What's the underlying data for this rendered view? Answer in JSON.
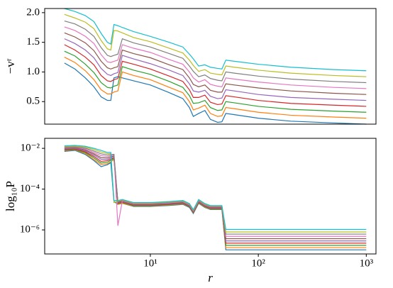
{
  "chart_data": [
    {
      "type": "line",
      "ylabel": "−vʳ",
      "x": [
        1.6,
        2,
        2.5,
        3,
        3.5,
        4,
        4.3,
        4.6,
        5,
        5.5,
        7,
        10,
        15,
        20,
        23,
        25,
        28,
        32,
        36,
        42,
        46,
        50,
        60,
        100,
        200,
        500,
        1000
      ],
      "xlim": [
        1.05,
        1230
      ],
      "xlog": true,
      "ylim": [
        0.12,
        2.07
      ],
      "yticks": [
        0.5,
        {
          "value": 1,
          "label": "1.0"
        },
        1.5,
        {
          "value": 2,
          "label": "2.0"
        }
      ],
      "series": [
        {
          "color": "#1f77b4",
          "values": [
            1.15,
            1.05,
            0.9,
            0.75,
            0.58,
            0.52,
            0.52,
            0.9,
            0.92,
            0.9,
            0.85,
            0.78,
            0.65,
            0.55,
            0.4,
            0.25,
            0.3,
            0.35,
            0.2,
            0.15,
            0.16,
            0.3,
            0.28,
            0.22,
            0.17,
            0.14,
            0.12
          ]
        },
        {
          "color": "#ff7f0e",
          "values": [
            1.25,
            1.16,
            1.02,
            0.87,
            0.7,
            0.63,
            0.63,
            0.66,
            0.68,
            1.0,
            0.94,
            0.87,
            0.74,
            0.65,
            0.5,
            0.36,
            0.39,
            0.44,
            0.3,
            0.25,
            0.26,
            0.4,
            0.38,
            0.32,
            0.27,
            0.24,
            0.22
          ]
        },
        {
          "color": "#2ca02c",
          "values": [
            1.35,
            1.27,
            1.13,
            0.99,
            0.82,
            0.74,
            0.73,
            0.76,
            0.78,
            1.09,
            1.03,
            0.96,
            0.84,
            0.74,
            0.6,
            0.47,
            0.48,
            0.52,
            0.4,
            0.35,
            0.36,
            0.5,
            0.48,
            0.42,
            0.37,
            0.34,
            0.32
          ]
        },
        {
          "color": "#d62728",
          "values": [
            1.46,
            1.37,
            1.25,
            1.12,
            0.94,
            0.85,
            0.84,
            0.87,
            0.89,
            1.18,
            1.13,
            1.05,
            0.93,
            0.84,
            0.7,
            0.57,
            0.57,
            0.61,
            0.49,
            0.45,
            0.46,
            0.6,
            0.58,
            0.52,
            0.47,
            0.44,
            0.42
          ]
        },
        {
          "color": "#9467bd",
          "values": [
            1.56,
            1.48,
            1.37,
            1.24,
            1.06,
            0.96,
            0.94,
            0.97,
            0.99,
            1.28,
            1.22,
            1.14,
            1.03,
            0.94,
            0.8,
            0.68,
            0.66,
            0.69,
            0.59,
            0.55,
            0.56,
            0.7,
            0.68,
            0.62,
            0.57,
            0.54,
            0.52
          ]
        },
        {
          "color": "#8c564b",
          "values": [
            1.66,
            1.59,
            1.49,
            1.36,
            1.18,
            1.07,
            1.05,
            1.07,
            1.09,
            1.37,
            1.31,
            1.24,
            1.12,
            1.04,
            0.9,
            0.79,
            0.75,
            0.78,
            0.69,
            0.66,
            0.66,
            0.8,
            0.78,
            0.73,
            0.68,
            0.64,
            0.62
          ]
        },
        {
          "color": "#e377c2",
          "values": [
            1.76,
            1.7,
            1.6,
            1.48,
            1.29,
            1.17,
            1.16,
            1.18,
            1.2,
            1.46,
            1.4,
            1.33,
            1.21,
            1.13,
            1.0,
            0.9,
            0.83,
            0.87,
            0.79,
            0.76,
            0.75,
            0.9,
            0.88,
            0.83,
            0.78,
            0.74,
            0.72
          ]
        },
        {
          "color": "#7f7f7f",
          "values": [
            1.86,
            1.81,
            1.72,
            1.6,
            1.41,
            1.28,
            1.26,
            1.28,
            1.3,
            1.56,
            1.49,
            1.42,
            1.31,
            1.23,
            1.1,
            1.01,
            0.92,
            0.95,
            0.89,
            0.86,
            0.85,
            1.0,
            0.98,
            0.93,
            0.88,
            0.84,
            0.82
          ]
        },
        {
          "color": "#bcbd22",
          "values": [
            1.97,
            1.91,
            1.84,
            1.73,
            1.53,
            1.39,
            1.37,
            1.7,
            1.69,
            1.66,
            1.58,
            1.51,
            1.4,
            1.32,
            1.2,
            1.11,
            1.01,
            1.04,
            0.98,
            0.96,
            0.95,
            1.1,
            1.08,
            1.03,
            0.98,
            0.94,
            0.92
          ]
        },
        {
          "color": "#17becf",
          "values": [
            2.07,
            2.02,
            1.95,
            1.85,
            1.65,
            1.5,
            1.47,
            1.8,
            1.78,
            1.75,
            1.68,
            1.6,
            1.5,
            1.42,
            1.3,
            1.22,
            1.1,
            1.12,
            1.08,
            1.06,
            1.05,
            1.2,
            1.18,
            1.13,
            1.08,
            1.04,
            1.02
          ]
        }
      ]
    },
    {
      "type": "line",
      "ylabel": "log₁₀P",
      "xlabel": "r",
      "x": [
        1.6,
        2,
        2.5,
        3,
        3.5,
        4,
        4.3,
        4.6,
        5,
        5.5,
        7,
        10,
        15,
        20,
        23,
        25,
        28,
        32,
        36,
        42,
        46,
        50,
        60,
        100,
        200,
        500,
        1000
      ],
      "xlim": [
        1.05,
        1230
      ],
      "xlog": true,
      "xticks": [
        {
          "value": 10,
          "label": "10¹"
        },
        {
          "value": 100,
          "label": "10²"
        },
        {
          "value": 1000,
          "label": "10³"
        }
      ],
      "ylim": [
        6.6e-08,
        0.031
      ],
      "ylog": true,
      "yticks": [
        {
          "value": 0.01,
          "label": "10⁻²"
        },
        {
          "value": 0.0001,
          "label": "10⁻⁴"
        },
        {
          "value": 1e-06,
          "label": "10⁻⁶"
        }
      ],
      "series": [
        {
          "color": "#1f77b4",
          "values": [
            0.00708,
            0.00794,
            0.005,
            0.0025,
            0.00126,
            0.00158,
            0.002,
            2.5e-05,
            1.78e-05,
            2e-05,
            1.41e-05,
            1.41e-05,
            1.58e-05,
            1.78e-05,
            1.26e-05,
            6.3e-06,
            2e-05,
            1.26e-05,
            1e-05,
            1e-05,
            1e-05,
            1.05e-07,
            1.05e-07,
            1.05e-07,
            1.05e-07,
            1.05e-07,
            1.05e-07
          ]
        },
        {
          "color": "#ff7f0e",
          "values": [
            0.0076,
            0.0085,
            0.0056,
            0.0028,
            0.00158,
            0.00178,
            0.0022,
            0.0028,
            1.78e-05,
            2e-05,
            1.48e-05,
            1.48e-05,
            1.66e-05,
            1.86e-05,
            1.35e-05,
            6.8e-06,
            2.1e-05,
            1.32e-05,
            1.05e-05,
            1.05e-05,
            1.05e-05,
            1.35e-07,
            1.35e-07,
            1.35e-07,
            1.35e-07,
            1.35e-07,
            1.35e-07
          ]
        },
        {
          "color": "#2ca02c",
          "values": [
            0.0081,
            0.0088,
            0.0062,
            0.0034,
            0.0019,
            0.0021,
            0.0026,
            0.0031,
            1.96e-05,
            2.2e-05,
            1.55e-05,
            1.55e-05,
            1.74e-05,
            1.96e-05,
            1.39e-05,
            6.9e-06,
            2.2e-05,
            1.39e-05,
            1.1e-05,
            1.1e-05,
            1.1e-05,
            1.74e-07,
            1.74e-07,
            1.74e-07,
            1.74e-07,
            1.74e-07,
            1.74e-07
          ]
        },
        {
          "color": "#d62728",
          "values": [
            0.0087,
            0.0094,
            0.0068,
            0.004,
            0.0023,
            0.0025,
            0.0029,
            0.0034,
            2.06e-05,
            2.32e-05,
            1.64e-05,
            1.64e-05,
            1.83e-05,
            2.06e-05,
            1.46e-05,
            7.3e-06,
            2.32e-05,
            1.46e-05,
            1.16e-05,
            1.16e-05,
            1.16e-05,
            2.24e-07,
            2.24e-07,
            2.24e-07,
            2.24e-07,
            2.24e-07,
            2.24e-07
          ]
        },
        {
          "color": "#9467bd",
          "values": [
            0.0093,
            0.01,
            0.0076,
            0.0047,
            0.0029,
            0.0029,
            0.0033,
            0.0038,
            2.17e-05,
            2.44e-05,
            1.72e-05,
            1.72e-05,
            1.93e-05,
            2.17e-05,
            1.54e-05,
            7.7e-06,
            2.44e-05,
            1.54e-05,
            1.22e-05,
            1.22e-05,
            1.22e-05,
            2.88e-07,
            2.88e-07,
            2.88e-07,
            2.88e-07,
            2.88e-07,
            2.88e-07
          ]
        },
        {
          "color": "#8c564b",
          "values": [
            0.01,
            0.0107,
            0.0083,
            0.0054,
            0.0035,
            0.0034,
            0.0038,
            0.0042,
            2.28e-05,
            2.56e-05,
            1.8e-05,
            1.8e-05,
            2.02e-05,
            2.28e-05,
            1.61e-05,
            8.1e-06,
            2.56e-05,
            1.61e-05,
            1.28e-05,
            1.28e-05,
            1.28e-05,
            3.7e-07,
            3.7e-07,
            3.7e-07,
            3.7e-07,
            3.7e-07,
            3.7e-07
          ]
        },
        {
          "color": "#e377c2",
          "values": [
            0.0107,
            0.0114,
            0.0093,
            0.0063,
            0.0044,
            0.004,
            0.0043,
            0.0047,
            1.6e-06,
            2.68e-05,
            1.89e-05,
            1.89e-05,
            2.12e-05,
            2.39e-05,
            1.69e-05,
            8.4e-06,
            2.68e-05,
            1.69e-05,
            1.34e-05,
            1.34e-05,
            1.34e-05,
            4.8e-07,
            4.8e-07,
            4.8e-07,
            4.8e-07,
            4.8e-07,
            4.8e-07
          ]
        },
        {
          "color": "#7f7f7f",
          "values": [
            0.0115,
            0.012,
            0.0102,
            0.0074,
            0.0054,
            0.0047,
            0.0049,
            0.0051,
            2.51e-05,
            2.82e-05,
            1.99e-05,
            1.99e-05,
            2.23e-05,
            2.51e-05,
            1.78e-05,
            8.9e-06,
            2.82e-05,
            1.78e-05,
            1.41e-05,
            1.41e-05,
            1.41e-05,
            6.2e-07,
            6.2e-07,
            6.2e-07,
            6.2e-07,
            6.2e-07,
            6.2e-07
          ]
        },
        {
          "color": "#bcbd22",
          "values": [
            0.0123,
            0.013,
            0.0115,
            0.0087,
            0.0066,
            0.0055,
            0.0055,
            2.2e-05,
            2.63e-05,
            2.96e-05,
            2.09e-05,
            2.09e-05,
            2.34e-05,
            2.63e-05,
            1.86e-05,
            9.3e-06,
            2.96e-05,
            1.86e-05,
            1.48e-05,
            1.48e-05,
            1.48e-05,
            7.9e-07,
            7.9e-07,
            7.9e-07,
            7.9e-07,
            7.9e-07,
            7.9e-07
          ]
        },
        {
          "color": "#17becf",
          "values": [
            0.0132,
            0.014,
            0.0126,
            0.01,
            0.0079,
            0.0063,
            0.0063,
            2.8e-05,
            2.76e-05,
            3.1e-05,
            2.19e-05,
            2.19e-05,
            2.45e-05,
            2.76e-05,
            1.95e-05,
            9.8e-06,
            3.1e-05,
            1.95e-05,
            1.55e-05,
            1.55e-05,
            1.55e-05,
            1.05e-06,
            1.05e-06,
            1.05e-06,
            1.05e-06,
            1.05e-06,
            1.05e-06
          ]
        }
      ]
    }
  ]
}
